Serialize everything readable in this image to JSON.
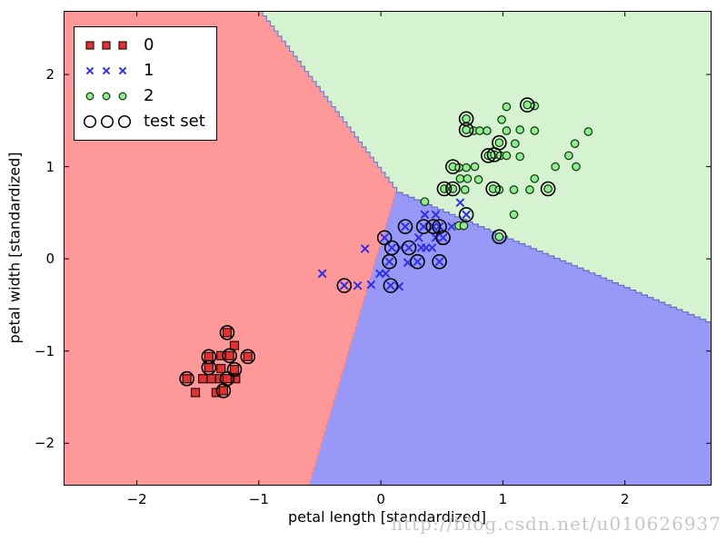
{
  "watermark": "http://blog.csdn.net/u010626937",
  "chart_data": {
    "type": "scatter",
    "title": "",
    "xlabel": "petal length [standardized]",
    "ylabel": "petal width [standardized]",
    "xlim": [
      -2.6,
      2.71
    ],
    "ylim": [
      -2.46,
      2.69
    ],
    "xticks": [
      -2,
      -1,
      0,
      1,
      2
    ],
    "yticks": [
      -2,
      -1,
      0,
      1,
      2
    ],
    "grid": false,
    "legend_position": "upper left",
    "legend": [
      {
        "label": "0",
        "marker": "square"
      },
      {
        "label": "1",
        "marker": "x"
      },
      {
        "label": "2",
        "marker": "circle"
      },
      {
        "label": "test set",
        "marker": "ring"
      }
    ],
    "colors": {
      "region0": "#FF9999",
      "region1": "#9898F8",
      "region2": "#D5F3D0",
      "boundary_rg": "#7b7bd9",
      "boundary_rb": "#ef8585",
      "boundary_gb": "#6b6bd0",
      "marker0_fill": "#E03232",
      "marker0_edge": "#2a0d0d",
      "marker1_stroke": "#3232E0",
      "marker2_fill": "#90EE90",
      "marker2_edge": "#1a3d1a",
      "test_edge": "#000000",
      "frame": "#000000"
    },
    "decision_regions": {
      "junction": [
        0.13,
        0.72
      ],
      "red_green_boundary_top_x": -1.0,
      "red_blue_boundary_bottom_x": -0.58,
      "green_blue_boundary_right_y": -0.71,
      "region_classes": [
        "0 red",
        "1 blue",
        "2 green"
      ]
    },
    "series": [
      {
        "name": "0",
        "marker": "square",
        "points": [
          [
            -1.26,
            -0.8,
            1
          ],
          [
            -1.2,
            -0.94,
            0
          ],
          [
            -1.41,
            -1.06,
            1
          ],
          [
            -1.31,
            -1.05,
            0
          ],
          [
            -1.24,
            -1.05,
            1
          ],
          [
            -1.09,
            -1.06,
            1
          ],
          [
            -1.41,
            -1.18,
            1
          ],
          [
            -1.31,
            -1.19,
            0
          ],
          [
            -1.2,
            -1.2,
            1
          ],
          [
            -1.59,
            -1.3,
            1
          ],
          [
            -1.46,
            -1.3,
            0
          ],
          [
            -1.39,
            -1.3,
            0
          ],
          [
            -1.32,
            -1.3,
            0
          ],
          [
            -1.26,
            -1.3,
            1
          ],
          [
            -1.19,
            -1.3,
            0
          ],
          [
            -1.52,
            -1.45,
            0
          ],
          [
            -1.35,
            -1.45,
            0
          ],
          [
            -1.29,
            -1.43,
            1
          ]
        ]
      },
      {
        "name": "1",
        "marker": "x",
        "points": [
          [
            0.36,
            0.48,
            0
          ],
          [
            0.45,
            0.48,
            0
          ],
          [
            0.2,
            0.35,
            1
          ],
          [
            0.35,
            0.35,
            1
          ],
          [
            0.43,
            0.35,
            1
          ],
          [
            0.48,
            0.35,
            1
          ],
          [
            0.58,
            0.35,
            0
          ],
          [
            0.65,
            0.61,
            0
          ],
          [
            0.7,
            0.48,
            1
          ],
          [
            0.31,
            0.23,
            0
          ],
          [
            0.45,
            0.23,
            0
          ],
          [
            0.51,
            0.23,
            1
          ],
          [
            0.03,
            0.23,
            1
          ],
          [
            0.09,
            0.12,
            1
          ],
          [
            0.16,
            0.12,
            0
          ],
          [
            0.23,
            0.12,
            1
          ],
          [
            0.33,
            0.12,
            0
          ],
          [
            0.37,
            0.12,
            0
          ],
          [
            0.42,
            0.12,
            0
          ],
          [
            -0.13,
            0.11,
            0
          ],
          [
            0.07,
            -0.03,
            1
          ],
          [
            0.22,
            -0.04,
            0
          ],
          [
            0.3,
            -0.03,
            1
          ],
          [
            0.48,
            -0.03,
            1
          ],
          [
            -0.48,
            -0.16,
            0
          ],
          [
            -0.01,
            -0.16,
            0
          ],
          [
            0.04,
            -0.16,
            0
          ],
          [
            -0.3,
            -0.29,
            1
          ],
          [
            -0.19,
            -0.29,
            0
          ],
          [
            -0.08,
            -0.28,
            0
          ],
          [
            0.08,
            -0.29,
            1
          ],
          [
            0.15,
            -0.3,
            0
          ]
        ]
      },
      {
        "name": "2",
        "marker": "circle",
        "points": [
          [
            1.03,
            1.65,
            0
          ],
          [
            1.2,
            1.67,
            1
          ],
          [
            1.26,
            1.66,
            0
          ],
          [
            0.7,
            1.52,
            1
          ],
          [
            0.99,
            1.51,
            0
          ],
          [
            0.7,
            1.4,
            1
          ],
          [
            0.76,
            1.39,
            0
          ],
          [
            0.81,
            1.39,
            0
          ],
          [
            0.87,
            1.39,
            0
          ],
          [
            1.03,
            1.39,
            0
          ],
          [
            1.14,
            1.4,
            0
          ],
          [
            1.26,
            1.39,
            0
          ],
          [
            1.7,
            1.38,
            0
          ],
          [
            0.97,
            1.26,
            1
          ],
          [
            1.1,
            1.25,
            0
          ],
          [
            1.59,
            1.25,
            0
          ],
          [
            0.88,
            1.12,
            1
          ],
          [
            0.93,
            1.13,
            1
          ],
          [
            0.98,
            1.12,
            0
          ],
          [
            1.03,
            1.12,
            0
          ],
          [
            1.14,
            1.11,
            0
          ],
          [
            1.54,
            1.12,
            0
          ],
          [
            0.59,
            1.0,
            1
          ],
          [
            0.64,
            0.99,
            0
          ],
          [
            0.7,
            0.99,
            0
          ],
          [
            0.77,
            1.0,
            0
          ],
          [
            1.43,
            1.0,
            0
          ],
          [
            1.6,
            1.0,
            0
          ],
          [
            0.65,
            0.87,
            0
          ],
          [
            0.71,
            0.87,
            0
          ],
          [
            0.8,
            0.86,
            0
          ],
          [
            1.26,
            0.87,
            0
          ],
          [
            0.52,
            0.76,
            1
          ],
          [
            0.59,
            0.76,
            1
          ],
          [
            0.69,
            0.75,
            0
          ],
          [
            0.92,
            0.76,
            1
          ],
          [
            0.97,
            0.75,
            0
          ],
          [
            1.09,
            0.75,
            0
          ],
          [
            1.22,
            0.75,
            0
          ],
          [
            1.37,
            0.76,
            1
          ],
          [
            0.36,
            0.62,
            0
          ],
          [
            1.09,
            0.48,
            0
          ],
          [
            0.64,
            0.36,
            0
          ],
          [
            0.68,
            0.36,
            0
          ],
          [
            0.97,
            0.24,
            1
          ]
        ]
      }
    ]
  }
}
